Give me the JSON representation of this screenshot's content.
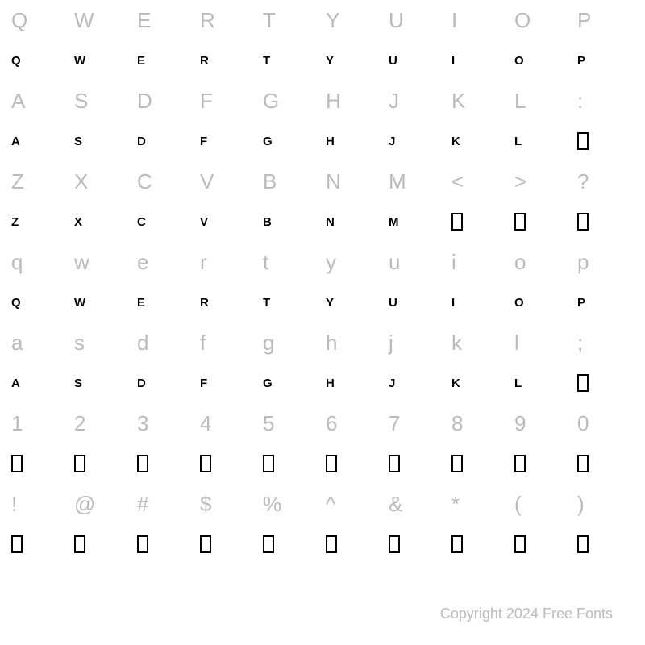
{
  "rows": [
    {
      "ref": [
        "Q",
        "W",
        "E",
        "R",
        "T",
        "Y",
        "U",
        "I",
        "O",
        "P"
      ],
      "glyph": [
        "Q",
        "W",
        "E",
        "R",
        "T",
        "Y",
        "U",
        "I",
        "O",
        "P"
      ],
      "glyphBox": [
        false,
        false,
        false,
        false,
        false,
        false,
        false,
        false,
        false,
        false
      ]
    },
    {
      "ref": [
        "A",
        "S",
        "D",
        "F",
        "G",
        "H",
        "J",
        "K",
        "L",
        ":"
      ],
      "glyph": [
        "A",
        "S",
        "D",
        "F",
        "G",
        "H",
        "J",
        "K",
        "L",
        ""
      ],
      "glyphBox": [
        false,
        false,
        false,
        false,
        false,
        false,
        false,
        false,
        false,
        true
      ]
    },
    {
      "ref": [
        "Z",
        "X",
        "C",
        "V",
        "B",
        "N",
        "M",
        "<",
        ">",
        "?"
      ],
      "glyph": [
        "Z",
        "X",
        "C",
        "V",
        "B",
        "N",
        "M",
        "",
        "",
        ""
      ],
      "glyphBox": [
        false,
        false,
        false,
        false,
        false,
        false,
        false,
        true,
        true,
        true
      ]
    },
    {
      "ref": [
        "q",
        "w",
        "e",
        "r",
        "t",
        "y",
        "u",
        "i",
        "o",
        "p"
      ],
      "glyph": [
        "Q",
        "W",
        "E",
        "R",
        "T",
        "Y",
        "U",
        "I",
        "O",
        "P"
      ],
      "glyphBox": [
        false,
        false,
        false,
        false,
        false,
        false,
        false,
        false,
        false,
        false
      ]
    },
    {
      "ref": [
        "a",
        "s",
        "d",
        "f",
        "g",
        "h",
        "j",
        "k",
        "l",
        ";"
      ],
      "glyph": [
        "A",
        "S",
        "D",
        "F",
        "G",
        "H",
        "J",
        "K",
        "L",
        ""
      ],
      "glyphBox": [
        false,
        false,
        false,
        false,
        false,
        false,
        false,
        false,
        false,
        true
      ]
    },
    {
      "ref": [
        "1",
        "2",
        "3",
        "4",
        "5",
        "6",
        "7",
        "8",
        "9",
        "0"
      ],
      "glyph": [
        "",
        "",
        "",
        "",
        "",
        "",
        "",
        "",
        "",
        ""
      ],
      "glyphBox": [
        true,
        true,
        true,
        true,
        true,
        true,
        true,
        true,
        true,
        true
      ]
    },
    {
      "ref": [
        "!",
        "@",
        "#",
        "$",
        "%",
        "^",
        "&",
        "*",
        "(",
        ")"
      ],
      "glyph": [
        "",
        "",
        "",
        "",
        "",
        "",
        "",
        "",
        "",
        ""
      ],
      "glyphBox": [
        true,
        true,
        true,
        true,
        true,
        true,
        true,
        true,
        true,
        true
      ]
    }
  ],
  "footer": "Copyright 2024 Free Fonts",
  "colors": {
    "refText": "#bbbbbb",
    "glyphText": "#000000",
    "background": "#ffffff"
  },
  "layout": {
    "columns": 10,
    "refFontSize": 26,
    "glyphFontSize": 15
  }
}
